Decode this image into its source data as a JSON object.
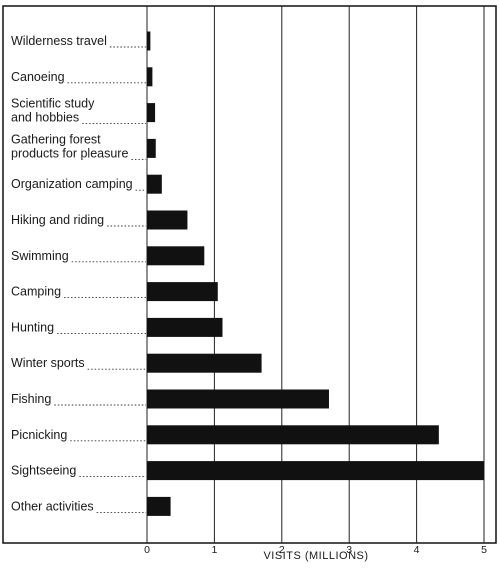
{
  "chart_data": {
    "type": "bar",
    "orientation": "horizontal",
    "title": "",
    "xlabel": "VISITS (MILLIONS)",
    "ylabel": "",
    "xlim": [
      0,
      5
    ],
    "xticks": [
      "0",
      "1",
      "2",
      "3",
      "4",
      "5"
    ],
    "grid": "vertical",
    "legend": "none",
    "categories": [
      [
        "Wilderness travel"
      ],
      [
        "Canoeing"
      ],
      [
        "Scientific study",
        "and hobbies"
      ],
      [
        "Gathering forest",
        "products for pleasure"
      ],
      [
        "Organization camping"
      ],
      [
        "Hiking and riding"
      ],
      [
        "Swimming"
      ],
      [
        "Camping"
      ],
      [
        "Hunting"
      ],
      [
        "Winter sports"
      ],
      [
        "Fishing"
      ],
      [
        "Picnicking"
      ],
      [
        "Sightseeing"
      ],
      [
        "Other activities"
      ]
    ],
    "values": [
      0.05,
      0.08,
      0.12,
      0.13,
      0.22,
      0.6,
      0.85,
      1.05,
      1.12,
      1.7,
      2.7,
      4.33,
      5.0,
      0.35
    ],
    "colors": {
      "bar": "#111111",
      "grid": "#222222",
      "frame": "#111111",
      "leader": "#333333"
    }
  }
}
